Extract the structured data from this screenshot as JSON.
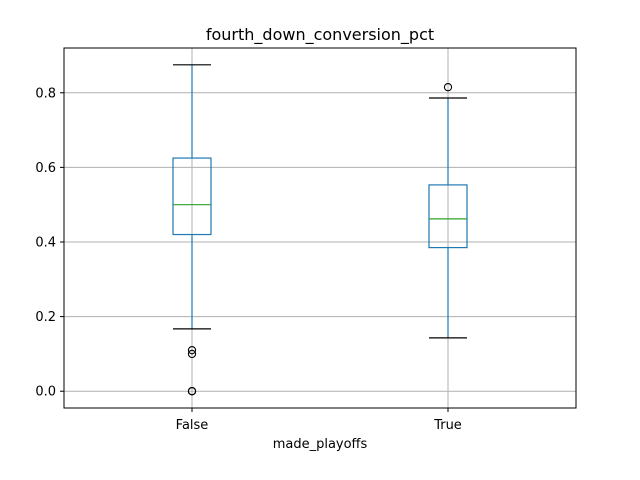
{
  "chart_data": {
    "type": "box",
    "title": "fourth_down_conversion_pct",
    "xlabel": "made_playoffs",
    "ylabel": "",
    "categories": [
      "False",
      "True"
    ],
    "ylim": [
      -0.045,
      0.92
    ],
    "yticks": [
      0.0,
      0.2,
      0.4,
      0.6,
      0.8
    ],
    "ytick_labels": [
      "0.0",
      "0.2",
      "0.4",
      "0.6",
      "0.8"
    ],
    "grid": true,
    "boxes": [
      {
        "label": "False",
        "whisker_low": 0.167,
        "q1": 0.42,
        "median": 0.5,
        "q3": 0.625,
        "whisker_high": 0.875,
        "outliers": [
          0.11,
          0.1,
          0.0,
          0.0
        ]
      },
      {
        "label": "True",
        "whisker_low": 0.143,
        "q1": 0.385,
        "median": 0.462,
        "q3": 0.553,
        "whisker_high": 0.786,
        "outliers": [
          0.815
        ]
      }
    ],
    "colors": {
      "box": "#1f77b4",
      "median": "#2ca02c",
      "cap": "#000000",
      "grid": "#b0b0b0"
    }
  }
}
